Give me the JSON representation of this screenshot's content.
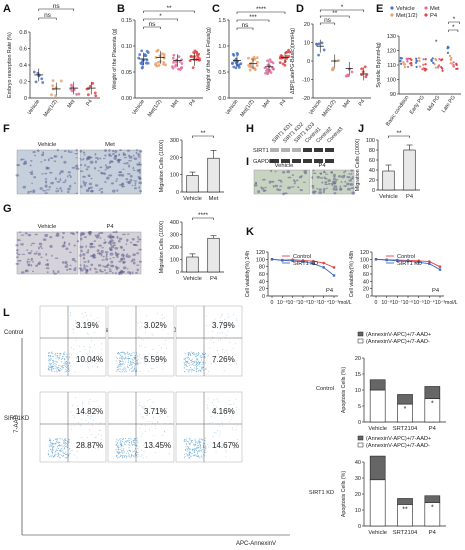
{
  "panel_letters": [
    "A",
    "B",
    "C",
    "D",
    "E",
    "F",
    "G",
    "H",
    "I",
    "J",
    "K",
    "L"
  ],
  "colors": {
    "vehicle": "#4a72c4",
    "met12": "#e8a06a",
    "met": "#e06e9a",
    "p4": "#e84040",
    "bar_gray": "#e8e8e8",
    "stack_gray": "#666666",
    "line_red": "#e04040",
    "line_blue": "#3a6cc8",
    "micro_bg": "#c9d3c2",
    "micro_bg_blue": "#c6d0dc",
    "flow_dot": "#5aa0cf"
  },
  "chart_data": [
    {
      "id": "A",
      "type": "scatter",
      "ylabel": "Embryo resorption Rate (%)",
      "ylim": [
        0,
        0.8
      ],
      "yticks": [
        "0",
        "0.2",
        "0.4",
        "0.6",
        "0.8"
      ],
      "categories": [
        "Vehicle",
        "Met(1/2)",
        "Met",
        "P4"
      ],
      "means": [
        0.28,
        0.11,
        0.12,
        0.12
      ],
      "sig": [
        {
          "from": 0,
          "to": 1,
          "label": "ns"
        },
        {
          "from": 0,
          "to": 2,
          "label": "ns"
        }
      ]
    },
    {
      "id": "B",
      "type": "scatter",
      "ylabel": "Weight of the Placenta (g)",
      "ylim": [
        0,
        0.15
      ],
      "yticks": [
        "0.00",
        "0.05",
        "0.10",
        "0.15"
      ],
      "categories": [
        "Vehicle",
        "Met(1/2)",
        "Met",
        "P4"
      ],
      "means": [
        0.075,
        0.078,
        0.072,
        0.074
      ],
      "sig": [
        {
          "from": 0,
          "to": 3,
          "label": "**"
        },
        {
          "from": 0,
          "to": 2,
          "label": "*"
        },
        {
          "from": 0,
          "to": 1,
          "label": "ns"
        }
      ]
    },
    {
      "id": "C",
      "type": "scatter",
      "ylabel": "Weight of the Live Fetus(g)",
      "ylim": [
        0,
        1.5
      ],
      "yticks": [
        "0.0",
        "0.5",
        "1.0",
        "1.5"
      ],
      "categories": [
        "Vehicle",
        "Met(1/2)",
        "Met",
        "P4"
      ],
      "means": [
        0.72,
        0.66,
        0.6,
        0.78
      ],
      "sig": [
        {
          "from": 0,
          "to": 3,
          "label": "****"
        },
        {
          "from": 0,
          "to": 2,
          "label": "***"
        },
        {
          "from": 0,
          "to": 1,
          "label": "ns"
        }
      ]
    },
    {
      "id": "D",
      "type": "scatter",
      "ylabel": "ΔBP(LatePG-Basic)(mmHg)",
      "ylim": [
        -20,
        20
      ],
      "yticks": [
        "-20",
        "-10",
        "0",
        "10",
        "20"
      ],
      "categories": [
        "Vehicle",
        "Met(1/2)",
        "Met",
        "P4"
      ],
      "means": [
        8,
        0,
        -4,
        -7
      ],
      "sig": [
        {
          "from": 0,
          "to": 3,
          "label": "*"
        },
        {
          "from": 0,
          "to": 2,
          "label": "**"
        },
        {
          "from": 0,
          "to": 1,
          "label": "ns"
        }
      ]
    },
    {
      "id": "E",
      "type": "scatter",
      "ylabel": "Systolic Bp(mmHg)",
      "ylim": [
        90,
        130
      ],
      "yticks": [
        "90",
        "100",
        "110",
        "120",
        "130"
      ],
      "categories": [
        "Basic condition",
        "Early PG",
        "Mid PG",
        "Late PG"
      ],
      "series": [
        {
          "name": "Vehicle",
          "means": [
            113,
            112,
            113,
            120
          ]
        },
        {
          "name": "Met(1/2)",
          "means": [
            112,
            111,
            112,
            114
          ]
        },
        {
          "name": "Met",
          "means": [
            112,
            111,
            111,
            112
          ]
        },
        {
          "name": "P4",
          "means": [
            112,
            110,
            110,
            110
          ]
        }
      ],
      "sig": [
        "*",
        "*",
        "*"
      ]
    },
    {
      "id": "F",
      "type": "bar",
      "ylabel": "Migration Cells (100X)",
      "ylim": [
        0,
        300
      ],
      "yticks": [
        "0",
        "100",
        "200",
        "300"
      ],
      "categories": [
        "Vehicle",
        "Met"
      ],
      "values": [
        95,
        195
      ],
      "errors": [
        20,
        45
      ],
      "sig": "**",
      "images": [
        "Vehicle",
        "Met"
      ]
    },
    {
      "id": "G",
      "type": "bar",
      "ylabel": "Migration Cells (100X)",
      "ylim": [
        0,
        400
      ],
      "yticks": [
        "0",
        "100",
        "200",
        "300",
        "400"
      ],
      "categories": [
        "Vehicle",
        "P4"
      ],
      "values": [
        120,
        270
      ],
      "errors": [
        25,
        20
      ],
      "sig": "****",
      "images": [
        "Vehicle",
        "P4"
      ]
    },
    {
      "id": "H",
      "type": "table",
      "lanes": [
        "SIRT1 KD1",
        "SIRT1 KD2",
        "SIRT1 KD3",
        "Control1",
        "Control2",
        "Control3"
      ],
      "proteins": [
        "SIRT1",
        "GAPDH"
      ]
    },
    {
      "id": "I",
      "images": [
        "Vehicle",
        "P4"
      ]
    },
    {
      "id": "J",
      "type": "bar",
      "ylabel": "Migration Cells (100X)",
      "ylim": [
        0,
        100
      ],
      "yticks": [
        "0",
        "20",
        "40",
        "60",
        "80",
        "100"
      ],
      "categories": [
        "Vehicle",
        "P4"
      ],
      "values": [
        38,
        80
      ],
      "errors": [
        12,
        10
      ],
      "sig": "**"
    },
    {
      "id": "K1",
      "type": "line",
      "ylabel": "Cell viability(%) 24h",
      "ylim": [
        0,
        120
      ],
      "yticks": [
        "0",
        "20",
        "40",
        "60",
        "80",
        "100",
        "120"
      ],
      "xticks": [
        "0",
        "10⁻⁸",
        "10⁻⁷",
        "10⁻⁶",
        "10⁻⁵",
        "10⁻⁴",
        "10⁻³"
      ],
      "xunit": "mol/L",
      "drug": "P4",
      "series": [
        {
          "name": "Control",
          "values": [
            100,
            98,
            99,
            97,
            95,
            90,
            78
          ]
        },
        {
          "name": "SIRT1 KD",
          "values": [
            100,
            97,
            96,
            94,
            88,
            78,
            56
          ]
        }
      ],
      "legend": "top-right"
    },
    {
      "id": "K2",
      "type": "line",
      "ylabel": "Cell viability(%) 48h",
      "ylim": [
        0,
        120
      ],
      "yticks": [
        "0",
        "20",
        "40",
        "60",
        "80",
        "100",
        "120"
      ],
      "xticks": [
        "0",
        "10⁻⁸",
        "10⁻⁷",
        "10⁻⁶",
        "10⁻⁵",
        "10⁻⁴",
        "10⁻³"
      ],
      "xunit": "mol/L",
      "drug": "P4",
      "series": [
        {
          "name": "Control",
          "values": [
            100,
            99,
            98,
            97,
            96,
            94,
            80
          ]
        },
        {
          "name": "SIRT1 KD",
          "values": [
            100,
            98,
            96,
            95,
            92,
            88,
            72
          ]
        }
      ],
      "legend": "top-right"
    },
    {
      "id": "L-flow",
      "type": "scatter",
      "columns": [
        "Vehicle",
        "SRT2104",
        "P4"
      ],
      "rows": [
        "Control",
        "SIRT1KD"
      ],
      "ylabel": "7-AAD",
      "xlabel": "APC-AnnexinV",
      "upper_right": [
        [
          "3.19%",
          "3.02%",
          "3.79%"
        ],
        [
          "14.82%",
          "3.71%",
          "4.16%"
        ]
      ],
      "lower_right": [
        [
          "10.04%",
          "5.59%",
          "7.26%"
        ],
        [
          "28.87%",
          "13.45%",
          "14.67%"
        ]
      ]
    },
    {
      "id": "L-ctrl",
      "type": "bar",
      "stacked": true,
      "row_label": "Control",
      "ylabel": "Apoptosis Cells (%)",
      "ylim": [
        0,
        20
      ],
      "yticks": [
        "0",
        "5",
        "10",
        "15",
        "20"
      ],
      "categories": [
        "Vehicle",
        "SRT2104",
        "P4"
      ],
      "series": [
        {
          "name": "(AnnexinV-APC)+/7-AAD-",
          "values": [
            10.0,
            5.6,
            7.3
          ]
        },
        {
          "name": "(AnnexinV-APC)+/7-AAD+",
          "values": [
            3.2,
            3.0,
            3.8
          ]
        }
      ],
      "sig": [
        "",
        "*",
        "*"
      ]
    },
    {
      "id": "L-kd",
      "type": "bar",
      "stacked": true,
      "row_label": "SIRT1 KD",
      "ylabel": "Apoptosis Cells (%)",
      "ylim": [
        0,
        40
      ],
      "yticks": [
        "0",
        "10",
        "20",
        "30",
        "40"
      ],
      "categories": [
        "Vehicle",
        "SRT2104",
        "P4"
      ],
      "series": [
        {
          "name": "(AnnexinV-APC)+/7-AAD-",
          "values": [
            28.9,
            13.5,
            14.7
          ]
        },
        {
          "name": "(AnnexinV-APC)+/7-AAD+",
          "values": [
            14.8,
            3.7,
            4.2
          ]
        }
      ],
      "sig": [
        "",
        "**",
        "*"
      ]
    }
  ]
}
